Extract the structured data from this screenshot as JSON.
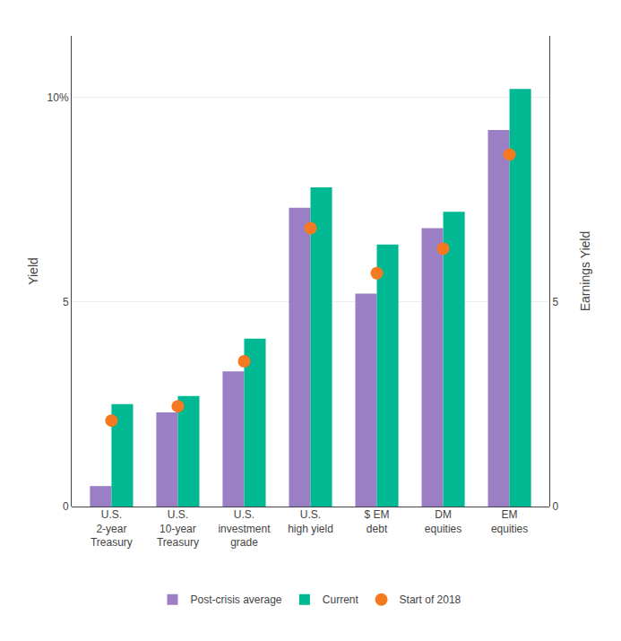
{
  "chart_data": {
    "type": "bar",
    "categories": [
      "U.S.\n2-year\nTreasury",
      "U.S.\n10-year\nTreasury",
      "U.S.\ninvestment\ngrade",
      "U.S.\nhigh yield",
      "$ EM\ndebt",
      "DM\nequities",
      "EM\nequities"
    ],
    "series": [
      {
        "name": "Post-crisis average",
        "color": "#9b7fc4",
        "values": [
          0.5,
          2.3,
          3.3,
          7.3,
          5.2,
          6.8,
          9.2
        ]
      },
      {
        "name": "Current",
        "color": "#00b891",
        "values": [
          2.5,
          2.7,
          4.1,
          7.8,
          6.4,
          7.2,
          10.2
        ]
      },
      {
        "name": "Start of 2018",
        "type": "scatter",
        "marker": "circle",
        "color": "#f47921",
        "values": [
          2.1,
          2.45,
          3.55,
          6.8,
          5.7,
          6.3,
          8.6
        ]
      }
    ],
    "ylabel": "Yield",
    "y2label": "Earnings Yield",
    "ylim": [
      0,
      11.5
    ],
    "yticks": [
      0,
      5,
      {
        "value": 10,
        "label": "10%"
      }
    ],
    "y2lim": [
      0,
      11.5
    ],
    "y2ticks": [
      0,
      5
    ],
    "grid": true,
    "legend": "bottom"
  }
}
